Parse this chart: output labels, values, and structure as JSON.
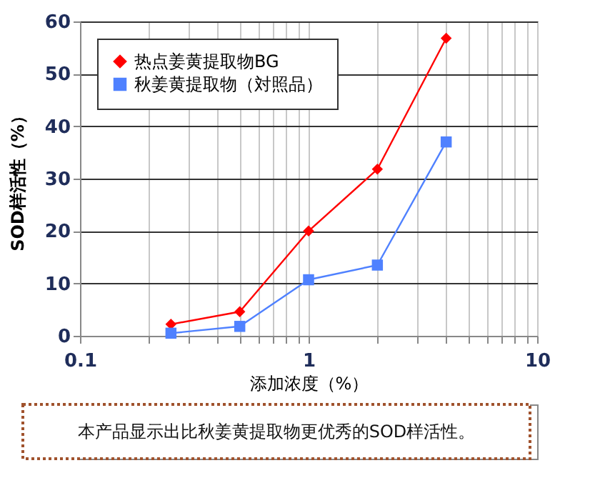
{
  "chart_data": {
    "type": "line",
    "xlabel": "添加浓度（%）",
    "ylabel": "SOD样活性（%）",
    "x": [
      0.25,
      0.5,
      1,
      2,
      4
    ],
    "series": [
      {
        "name": "热点姜黄提取物BG",
        "color": "#ff0000",
        "marker": "diamond",
        "values": [
          2.2,
          4.6,
          20,
          31.8,
          56.8
        ]
      },
      {
        "name": "秋姜黄提取物（対照品）",
        "color": "#4f81ff",
        "marker": "square",
        "values": [
          0.5,
          1.8,
          10.7,
          13.5,
          37
        ]
      }
    ],
    "log": "x",
    "xlim": [
      0.1,
      10
    ],
    "xticks": [
      0.1,
      {
        "value": 0.2,
        "label": null
      },
      {
        "value": 0.3,
        "label": null
      },
      {
        "value": 0.4,
        "label": null
      },
      {
        "value": 0.5,
        "label": null
      },
      {
        "value": 0.6,
        "label": null
      },
      {
        "value": 0.7,
        "label": null
      },
      {
        "value": 0.8,
        "label": null
      },
      {
        "value": 0.9,
        "label": null
      },
      1,
      {
        "value": 2,
        "label": null
      },
      {
        "value": 3,
        "label": null
      },
      {
        "value": 4,
        "label": null
      },
      {
        "value": 5,
        "label": null
      },
      {
        "value": 6,
        "label": null
      },
      {
        "value": 7,
        "label": null
      },
      {
        "value": 8,
        "label": null
      },
      {
        "value": 9,
        "label": null
      },
      10
    ],
    "ylim": [
      0,
      60
    ],
    "yticks": [
      0,
      10,
      20,
      30,
      40,
      50,
      60
    ],
    "grid": true,
    "legend": "top left",
    "annotations": [
      "本产品显示出比秋姜黄提取物更优秀的SOD样活性。"
    ]
  }
}
